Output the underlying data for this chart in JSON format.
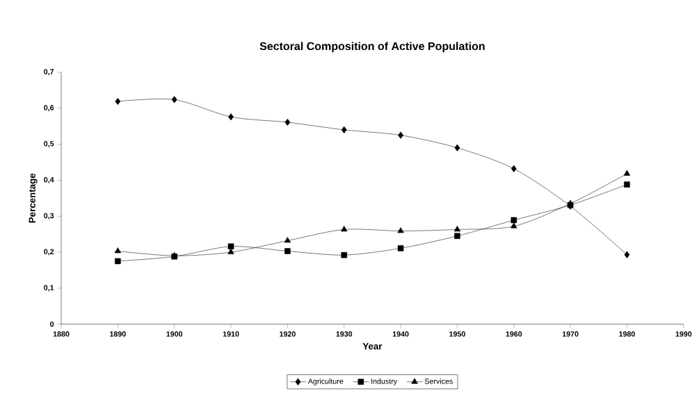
{
  "chart_data": {
    "type": "line",
    "title": "Sectoral Composition of Active Population",
    "xlabel": "Year",
    "ylabel": "Percentage",
    "x": [
      1890,
      1900,
      1910,
      1920,
      1930,
      1940,
      1950,
      1960,
      1970,
      1980
    ],
    "series": [
      {
        "name": "Agriculture",
        "color": "#000000",
        "marker": "diamond",
        "values": [
          0.619,
          0.624,
          0.576,
          0.561,
          0.54,
          0.525,
          0.49,
          0.432,
          0.328,
          0.193
        ]
      },
      {
        "name": "Industry",
        "color": "#000000",
        "marker": "square",
        "values": [
          0.175,
          0.188,
          0.216,
          0.203,
          0.192,
          0.211,
          0.245,
          0.289,
          0.331,
          0.388
        ]
      },
      {
        "name": "Services",
        "color": "#000000",
        "marker": "triangle",
        "values": [
          0.203,
          0.19,
          0.2,
          0.232,
          0.263,
          0.259,
          0.263,
          0.272,
          0.335,
          0.418
        ]
      }
    ],
    "xlim": [
      1880,
      1990
    ],
    "xticks": [
      1880,
      1890,
      1900,
      1910,
      1920,
      1930,
      1940,
      1950,
      1960,
      1970,
      1980,
      1990
    ],
    "ylim": [
      0,
      0.7
    ],
    "yticks": [
      0,
      {
        "value": 0.1,
        "label": "0,1"
      },
      {
        "value": 0.2,
        "label": "0,2"
      },
      {
        "value": 0.3,
        "label": "0,3"
      },
      {
        "value": 0.4,
        "label": "0,4"
      },
      {
        "value": 0.5,
        "label": "0,5"
      },
      {
        "value": 0.6,
        "label": "0,6"
      },
      {
        "value": 0.7,
        "label": "0,7"
      }
    ],
    "grid": false,
    "legend": "bottom",
    "line_style": "solid"
  }
}
